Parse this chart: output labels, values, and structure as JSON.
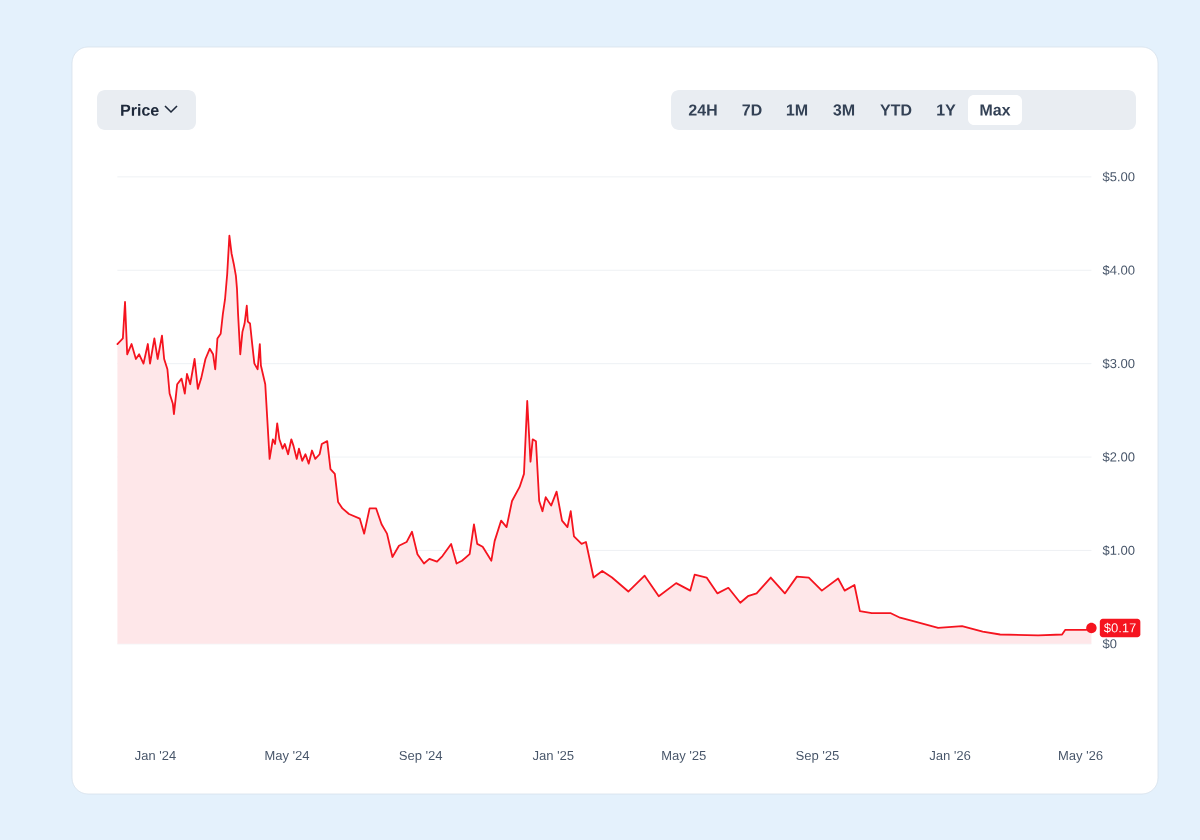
{
  "chart_data": {
    "type": "area",
    "x": [
      "2023-11-27",
      "2023-12-02",
      "2023-12-04",
      "2023-12-06",
      "2023-12-10",
      "2023-12-14",
      "2023-12-17",
      "2023-12-21",
      "2023-12-25",
      "2023-12-27",
      "2023-12-31",
      "2024-01-03",
      "2024-01-07",
      "2024-01-09",
      "2024-01-12",
      "2024-01-14",
      "2024-01-17",
      "2024-01-18",
      "2024-01-21",
      "2024-01-25",
      "2024-01-28",
      "2024-01-30",
      "2024-02-02",
      "2024-02-06",
      "2024-02-09",
      "2024-02-12",
      "2024-02-16",
      "2024-02-20",
      "2024-02-23",
      "2024-02-25",
      "2024-02-27",
      "2024-03-01",
      "2024-03-03",
      "2024-03-05",
      "2024-03-07",
      "2024-03-09",
      "2024-03-11",
      "2024-03-13",
      "2024-03-15",
      "2024-03-16",
      "2024-03-17",
      "2024-03-19",
      "2024-03-21",
      "2024-03-23",
      "2024-03-25",
      "2024-03-26",
      "2024-03-28",
      "2024-03-30",
      "2024-04-01",
      "2024-04-04",
      "2024-04-06",
      "2024-04-07",
      "2024-04-11",
      "2024-04-15",
      "2024-04-18",
      "2024-04-20",
      "2024-04-22",
      "2024-04-24",
      "2024-04-27",
      "2024-04-29",
      "2024-05-02",
      "2024-05-05",
      "2024-05-07",
      "2024-05-10",
      "2024-05-12",
      "2024-05-15",
      "2024-05-18",
      "2024-05-21",
      "2024-05-24",
      "2024-05-27",
      "2024-05-31",
      "2024-06-02",
      "2024-06-07",
      "2024-06-10",
      "2024-06-14",
      "2024-06-17",
      "2024-06-21",
      "2024-06-27",
      "2024-07-07",
      "2024-07-11",
      "2024-07-16",
      "2024-07-22",
      "2024-07-27",
      "2024-08-01",
      "2024-08-06",
      "2024-08-12",
      "2024-08-19",
      "2024-08-24",
      "2024-08-29",
      "2024-09-04",
      "2024-09-09",
      "2024-09-16",
      "2024-09-21",
      "2024-09-29",
      "2024-10-04",
      "2024-10-09",
      "2024-10-16",
      "2024-10-20",
      "2024-10-23",
      "2024-10-28",
      "2024-11-05",
      "2024-11-08",
      "2024-11-14",
      "2024-11-19",
      "2024-11-24",
      "2024-12-01",
      "2024-12-05",
      "2024-12-08",
      "2024-12-11",
      "2024-12-13",
      "2024-12-16",
      "2024-12-19",
      "2024-12-22",
      "2024-12-25",
      "2024-12-30",
      "2025-01-04",
      "2025-01-09",
      "2025-01-14",
      "2025-01-17",
      "2025-01-20",
      "2025-01-27",
      "2025-01-31",
      "2025-02-05",
      "2025-02-07",
      "2025-02-15",
      "2025-02-24",
      "2025-03-11",
      "2025-03-26",
      "2025-04-08",
      "2025-04-24",
      "2025-05-07",
      "2025-05-11",
      "2025-05-22",
      "2025-06-01",
      "2025-06-11",
      "2025-06-22",
      "2025-06-29",
      "2025-07-07",
      "2025-07-20",
      "2025-08-02",
      "2025-08-13",
      "2025-08-24",
      "2025-09-05",
      "2025-09-20",
      "2025-09-26",
      "2025-10-05",
      "2025-10-10",
      "2025-10-21",
      "2025-11-07",
      "2025-11-16",
      "2025-11-29",
      "2025-12-21",
      "2026-01-12",
      "2026-01-31",
      "2026-02-16",
      "2026-03-23",
      "2026-04-14",
      "2026-04-17",
      "2026-05-06",
      "2026-05-11"
    ],
    "series": [
      {
        "color": "#f5141f",
        "values": [
          3.21,
          3.27,
          3.66,
          3.1,
          3.21,
          3.05,
          3.1,
          3.0,
          3.21,
          3.0,
          3.27,
          3.05,
          3.3,
          3.05,
          2.94,
          2.68,
          2.57,
          2.46,
          2.78,
          2.84,
          2.68,
          2.89,
          2.78,
          3.05,
          2.73,
          2.84,
          3.05,
          3.16,
          3.1,
          2.94,
          3.27,
          3.32,
          3.53,
          3.69,
          3.96,
          4.37,
          4.18,
          4.07,
          3.94,
          3.8,
          3.53,
          3.1,
          3.34,
          3.43,
          3.62,
          3.45,
          3.43,
          3.21,
          3.0,
          2.94,
          3.21,
          2.98,
          2.78,
          1.98,
          2.19,
          2.14,
          2.36,
          2.19,
          2.09,
          2.14,
          2.03,
          2.19,
          2.12,
          1.98,
          2.09,
          1.96,
          2.03,
          1.93,
          2.07,
          1.98,
          2.03,
          2.14,
          2.17,
          1.87,
          1.82,
          1.52,
          1.45,
          1.39,
          1.34,
          1.18,
          1.45,
          1.45,
          1.28,
          1.18,
          0.93,
          1.05,
          1.09,
          1.2,
          0.96,
          0.86,
          0.91,
          0.88,
          0.94,
          1.07,
          0.86,
          0.89,
          0.96,
          1.28,
          1.07,
          1.04,
          0.89,
          1.1,
          1.32,
          1.25,
          1.53,
          1.68,
          1.82,
          2.6,
          1.95,
          2.19,
          2.17,
          1.53,
          1.42,
          1.57,
          1.48,
          1.63,
          1.32,
          1.25,
          1.42,
          1.15,
          1.07,
          1.09,
          0.82,
          0.71,
          0.78,
          0.71,
          0.56,
          0.73,
          0.51,
          0.65,
          0.57,
          0.74,
          0.71,
          0.54,
          0.6,
          0.44,
          0.51,
          0.54,
          0.71,
          0.54,
          0.72,
          0.71,
          0.57,
          0.7,
          0.57,
          0.63,
          0.35,
          0.33,
          0.33,
          0.28,
          0.24,
          0.17,
          0.19,
          0.13,
          0.1,
          0.09,
          0.1,
          0.15,
          0.15,
          0.17
        ]
      }
    ],
    "xlim": [
      "2023-11-27",
      "2026-05-11"
    ],
    "xticks": [
      {
        "value": "2024-01-01",
        "label": "Jan '24"
      },
      {
        "value": "2024-05-01",
        "label": "May '24"
      },
      {
        "value": "2024-09-01",
        "label": "Sep '24"
      },
      {
        "value": "2025-01-01",
        "label": "Jan '25"
      },
      {
        "value": "2025-05-01",
        "label": "May '25"
      },
      {
        "value": "2025-09-01",
        "label": "Sep '25"
      },
      {
        "value": "2026-01-01",
        "label": "Jan '26"
      },
      {
        "value": "2026-05-01",
        "label": "May '26"
      }
    ],
    "ylim": [
      0,
      5
    ],
    "yticks": [
      {
        "value": 0,
        "label": "$0"
      },
      {
        "value": 1,
        "label": "$1.00"
      },
      {
        "value": 2,
        "label": "$2.00"
      },
      {
        "value": 3,
        "label": "$3.00"
      },
      {
        "value": 4,
        "label": "$4.00"
      },
      {
        "value": 5,
        "label": "$5.00"
      }
    ],
    "grid": "y",
    "annotations": [
      "Price",
      "24H",
      "7D",
      "1M",
      "3M",
      "YTD",
      "1Y",
      "Max",
      {
        "text": "$0.17",
        "x": "2026-05-11",
        "y": 0.17
      }
    ]
  }
}
